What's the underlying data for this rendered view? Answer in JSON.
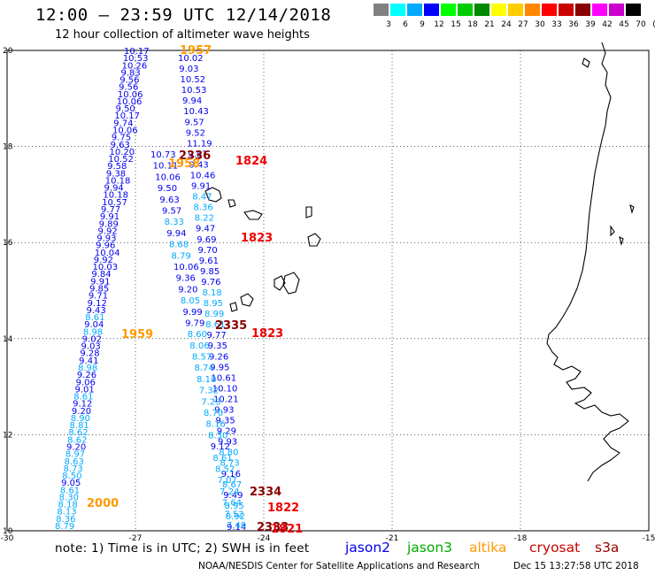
{
  "header": {
    "title": "12:00 – 23:59 UTC 12/14/2018",
    "subtitle": "12 hour collection of altimeter wave heights"
  },
  "color_scale": {
    "unit_label": "(ft)",
    "bins": [
      {
        "label": "3",
        "color": "#808080"
      },
      {
        "label": "6",
        "color": "#00ffff"
      },
      {
        "label": "9",
        "color": "#00aaff"
      },
      {
        "label": "12",
        "color": "#0000ff"
      },
      {
        "label": "15",
        "color": "#00ff00"
      },
      {
        "label": "18",
        "color": "#00cc00"
      },
      {
        "label": "21",
        "color": "#008800"
      },
      {
        "label": "24",
        "color": "#ffff00"
      },
      {
        "label": "27",
        "color": "#ffcc00"
      },
      {
        "label": "30",
        "color": "#ff8800"
      },
      {
        "label": "33",
        "color": "#ff0000"
      },
      {
        "label": "36",
        "color": "#cc0000"
      },
      {
        "label": "39",
        "color": "#880000"
      },
      {
        "label": "42",
        "color": "#ff00ff"
      },
      {
        "label": "45",
        "color": "#cc00cc"
      },
      {
        "label": "70",
        "color": "#000000"
      }
    ]
  },
  "map": {
    "lat_labels": [
      "20",
      "18",
      "16",
      "14",
      "12",
      "10"
    ],
    "lon_labels": [
      "-30",
      "-27",
      "-24",
      "-21",
      "-18",
      "-15"
    ],
    "time_labels": [
      {
        "text": "1957",
        "color": "#ff9900"
      },
      {
        "text": "2336",
        "color": "#880000"
      },
      {
        "text": "1824",
        "color": "#ee0000"
      },
      {
        "text": "1958",
        "color": "#ff9900"
      },
      {
        "text": "1823",
        "color": "#ee0000"
      },
      {
        "text": "2335",
        "color": "#880000"
      },
      {
        "text": "1823",
        "color": "#ee0000"
      },
      {
        "text": "1959",
        "color": "#ff9900"
      },
      {
        "text": "2334",
        "color": "#880000"
      },
      {
        "text": "1822",
        "color": "#ee0000"
      },
      {
        "text": "2333",
        "color": "#880000"
      },
      {
        "text": "1821",
        "color": "#ee0000"
      },
      {
        "text": "2000",
        "color": "#ff9900"
      }
    ],
    "track_values": {
      "west_track": [
        "10.17",
        "10.53",
        "10.26",
        "9.83",
        "9.56",
        "9.56",
        "10.06",
        "10.06",
        "9.50",
        "10.17",
        "9.74",
        "10.06",
        "9.75",
        "9.63",
        "10.20",
        "10.52",
        "9.58",
        "9.38",
        "10.18",
        "9.94",
        "10.18",
        "10.57",
        "9.77",
        "9.91",
        "9.89",
        "9.92",
        "9.93",
        "9.96",
        "10.04",
        "9.92",
        "10.03",
        "9.84",
        "9.91",
        "9.85",
        "9.71",
        "9.12",
        "9.43",
        "8.61",
        "9.04",
        "8.98",
        "9.02",
        "9.03",
        "9.28",
        "9.41",
        "8.98",
        "9.26",
        "9.06",
        "9.01",
        "8.61",
        "9.12",
        "9.20",
        "8.90",
        "8.81",
        "8.62",
        "8.62",
        "9.20",
        "8.97",
        "8.63",
        "8.73",
        "8.50",
        "9.05",
        "8.61",
        "8.30",
        "8.18",
        "8.13",
        "8.36",
        "8.79"
      ],
      "mid_track": [
        "10.02",
        "9.03",
        "10.52",
        "10.53",
        "9.94",
        "10.43",
        "9.57",
        "9.52",
        "11.19",
        "9.87",
        "9.43",
        "10.46",
        "9.91",
        "8.47",
        "8.36",
        "8.22",
        "9.47",
        "9.69",
        "9.70",
        "9.61",
        "9.85",
        "9.76",
        "8.18",
        "8.95",
        "8.99",
        "8.61",
        "9.77",
        "9.35",
        "9.26",
        "9.95",
        "10.61",
        "10.10",
        "10.21",
        "9.93",
        "9.35",
        "9.29",
        "9.93",
        "8.80",
        "8.73",
        "9.16",
        "8.67",
        "9.49",
        "8.95",
        "8.92",
        "9.14"
      ],
      "east_track": [
        "10.73",
        "10.11",
        "10.06",
        "9.50",
        "9.63",
        "9.57",
        "8.33",
        "9.94",
        "8.68",
        "8.79",
        "10.06",
        "9.36",
        "9.20",
        "8.05",
        "9.99",
        "9.79",
        "8.60",
        "8.06",
        "8.57",
        "8.74",
        "8.10",
        "7.32",
        "7.23",
        "8.70",
        "8.16",
        "8.30",
        "9.12",
        "8.61",
        "8.52",
        "7.07",
        "7.24",
        "7.64",
        "7.52",
        "7.49"
      ]
    }
  },
  "footer": {
    "note": "note: 1) Time is in UTC; 2) SWH is in feet",
    "legend": [
      {
        "name": "jason2",
        "color": "#0000ee"
      },
      {
        "name": "jason3",
        "color": "#00aa00"
      },
      {
        "name": "altika",
        "color": "#ff9900"
      },
      {
        "name": "cryosat",
        "color": "#cc0000"
      },
      {
        "name": "s3a",
        "color": "#990000"
      }
    ],
    "credit": "NOAA/NESDIS Center for Satellite Applications and Research",
    "date": "Dec 15 13:27:58 UTC 2018"
  }
}
